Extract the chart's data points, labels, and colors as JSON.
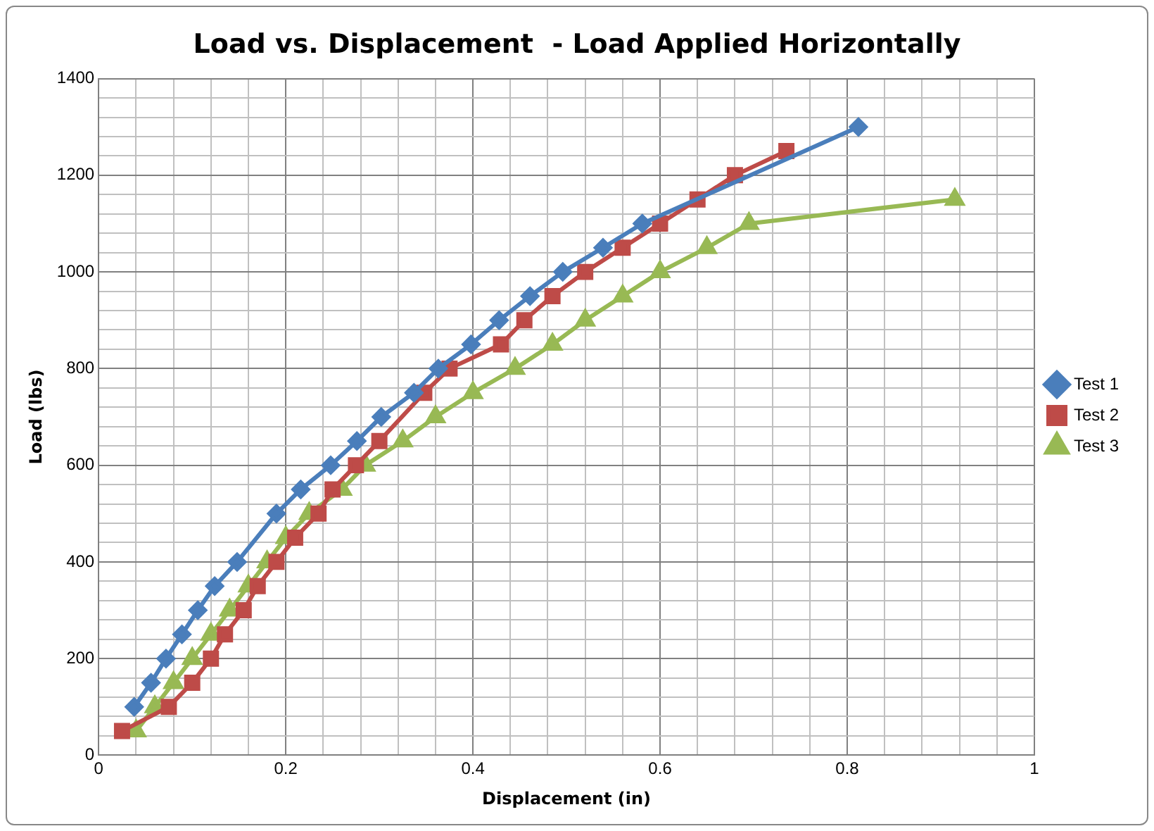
{
  "chart_data": {
    "type": "line",
    "title": "Load vs. Displacement  - Load Applied Horizontally",
    "xlabel": "Displacement (in)",
    "ylabel": "Load (lbs)",
    "xlim": [
      0,
      1
    ],
    "ylim": [
      0,
      1400
    ],
    "xticks": [
      0,
      {
        "value": 0.04,
        "label": null
      },
      {
        "value": 0.08,
        "label": null
      },
      {
        "value": 0.12,
        "label": null
      },
      {
        "value": 0.16,
        "label": null
      },
      0.2,
      {
        "value": 0.24,
        "label": null
      },
      {
        "value": 0.28,
        "label": null
      },
      {
        "value": 0.32,
        "label": null
      },
      {
        "value": 0.36,
        "label": null
      },
      0.4,
      {
        "value": 0.44,
        "label": null
      },
      {
        "value": 0.48,
        "label": null
      },
      {
        "value": 0.52,
        "label": null
      },
      {
        "value": 0.56,
        "label": null
      },
      0.6,
      {
        "value": 0.64,
        "label": null
      },
      {
        "value": 0.68,
        "label": null
      },
      {
        "value": 0.72,
        "label": null
      },
      {
        "value": 0.76,
        "label": null
      },
      0.8,
      {
        "value": 0.84,
        "label": null
      },
      {
        "value": 0.88,
        "label": null
      },
      {
        "value": 0.92,
        "label": null
      },
      {
        "value": 0.96,
        "label": null
      },
      1
    ],
    "yticks": [
      0,
      {
        "value": 40,
        "label": null
      },
      {
        "value": 80,
        "label": null
      },
      {
        "value": 120,
        "label": null
      },
      {
        "value": 160,
        "label": null
      },
      200,
      {
        "value": 240,
        "label": null
      },
      {
        "value": 280,
        "label": null
      },
      {
        "value": 320,
        "label": null
      },
      {
        "value": 360,
        "label": null
      },
      400,
      {
        "value": 440,
        "label": null
      },
      {
        "value": 480,
        "label": null
      },
      {
        "value": 520,
        "label": null
      },
      {
        "value": 560,
        "label": null
      },
      600,
      {
        "value": 640,
        "label": null
      },
      {
        "value": 680,
        "label": null
      },
      {
        "value": 720,
        "label": null
      },
      {
        "value": 760,
        "label": null
      },
      800,
      {
        "value": 840,
        "label": null
      },
      {
        "value": 880,
        "label": null
      },
      {
        "value": 920,
        "label": null
      },
      {
        "value": 960,
        "label": null
      },
      1000,
      {
        "value": 1040,
        "label": null
      },
      {
        "value": 1080,
        "label": null
      },
      {
        "value": 1120,
        "label": null
      },
      {
        "value": 1160,
        "label": null
      },
      1200,
      {
        "value": 1240,
        "label": null
      },
      {
        "value": 1280,
        "label": null
      },
      {
        "value": 1320,
        "label": null
      },
      {
        "value": 1360,
        "label": null
      },
      1400
    ],
    "grid": true,
    "legend": "right",
    "line_style": "solid",
    "series": [
      {
        "name": "Test 1",
        "color": "#4a7ebb",
        "marker": "diamond",
        "x": [
          0.038,
          0.056,
          0.072,
          0.089,
          0.106,
          0.124,
          0.148,
          0.19,
          0.216,
          0.248,
          0.276,
          0.302,
          0.337,
          0.363,
          0.398,
          0.428,
          0.461,
          0.496,
          0.539,
          0.581,
          0.812
        ],
        "values": [
          100,
          150,
          200,
          250,
          300,
          350,
          400,
          500,
          550,
          600,
          650,
          700,
          750,
          800,
          850,
          900,
          950,
          1000,
          1050,
          1100,
          1300
        ]
      },
      {
        "name": "Test 2",
        "color": "#be4b48",
        "marker": "square",
        "x": [
          0.025,
          0.075,
          0.1,
          0.12,
          0.135,
          0.155,
          0.17,
          0.19,
          0.21,
          0.235,
          0.25,
          0.275,
          0.3,
          0.348,
          0.375,
          0.43,
          0.455,
          0.485,
          0.52,
          0.56,
          0.6,
          0.64,
          0.68,
          0.735
        ],
        "values": [
          50,
          100,
          150,
          200,
          250,
          300,
          350,
          400,
          450,
          500,
          550,
          600,
          650,
          750,
          800,
          850,
          900,
          950,
          1000,
          1050,
          1100,
          1150,
          1200,
          1250
        ]
      },
      {
        "name": "Test 3",
        "color": "#98b954",
        "marker": "triangle",
        "x": [
          0.04,
          0.06,
          0.08,
          0.1,
          0.12,
          0.14,
          0.16,
          0.18,
          0.2,
          0.225,
          0.26,
          0.285,
          0.325,
          0.36,
          0.4,
          0.445,
          0.485,
          0.52,
          0.56,
          0.6,
          0.65,
          0.695,
          0.915
        ],
        "values": [
          50,
          100,
          150,
          200,
          250,
          300,
          350,
          400,
          450,
          500,
          550,
          600,
          650,
          700,
          750,
          800,
          850,
          900,
          950,
          1000,
          1050,
          1100,
          1150
        ]
      }
    ]
  }
}
